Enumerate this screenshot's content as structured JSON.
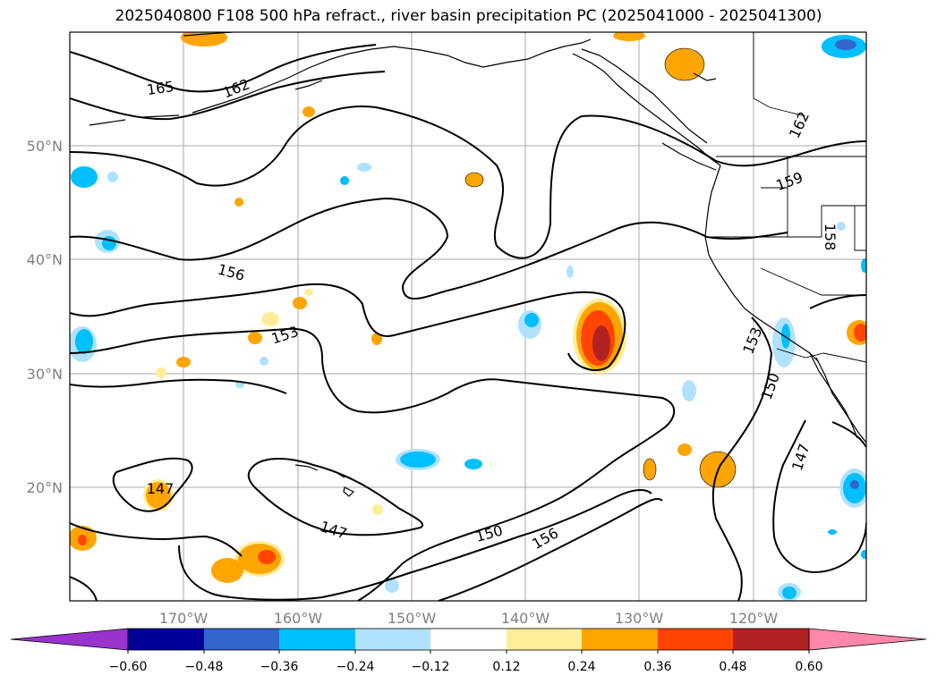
{
  "title": "2025040800 F108 500 hPa refract., river basin precipitation PC (2025041000 - 2025041300)",
  "lat_labels": [
    "50°N",
    "40°N",
    "30°N",
    "20°N"
  ],
  "lon_labels": [
    "170°W",
    "160°W",
    "150°W",
    "140°W",
    "130°W",
    "120°W"
  ],
  "contour_labels": [
    "165",
    "162",
    "162",
    "159",
    "156",
    "153",
    "153",
    "150",
    "147",
    "147",
    "147",
    "150",
    "156",
    "158"
  ],
  "colorbar": {
    "ticks": [
      "−0.60",
      "−0.48",
      "−0.36",
      "−0.24",
      "−0.12",
      "0.12",
      "0.24",
      "0.36",
      "0.48",
      "0.60"
    ],
    "colors": [
      "#9933cc",
      "#000099",
      "#3366cc",
      "#00bfff",
      "#b0e2ff",
      "#ffffff",
      "#ffee99",
      "#ffa500",
      "#ff4500",
      "#b22222",
      "#ff88aa"
    ]
  },
  "colors": {
    "contour": "#000000",
    "coast": "#000000",
    "grid": "#aaaaaa"
  }
}
